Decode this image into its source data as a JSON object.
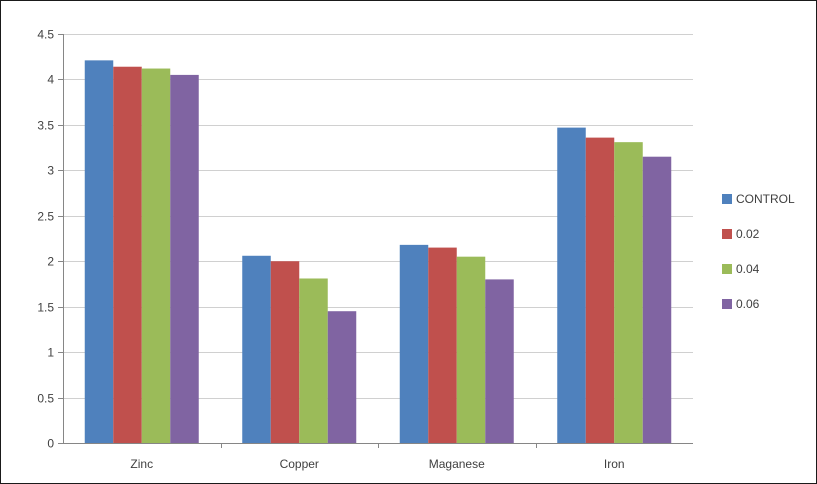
{
  "chart_data": {
    "type": "bar",
    "title": "",
    "xlabel": "",
    "ylabel": "",
    "ylim": [
      0,
      4.5
    ],
    "ytick_step": 0.5,
    "ytick_labels": [
      "0",
      "0.5",
      "1",
      "1.5",
      "2",
      "2.5",
      "3",
      "3.5",
      "4",
      "4.5"
    ],
    "grid": true,
    "legend_position": "right",
    "categories": [
      "Zinc",
      "Copper",
      "Maganese",
      "Iron"
    ],
    "series": [
      {
        "name": "CONTROL",
        "color": "#4F81BD",
        "values": [
          4.21,
          2.06,
          2.18,
          3.47
        ]
      },
      {
        "name": "0.02",
        "color": "#C0504D",
        "values": [
          4.14,
          2.0,
          2.15,
          3.36
        ]
      },
      {
        "name": "0.04",
        "color": "#9BBB59",
        "values": [
          4.12,
          1.81,
          2.05,
          3.31
        ]
      },
      {
        "name": "0.06",
        "color": "#8064A2",
        "values": [
          4.05,
          1.45,
          1.8,
          3.15
        ]
      }
    ]
  }
}
